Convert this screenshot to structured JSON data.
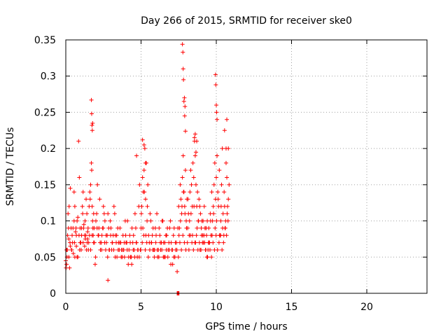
{
  "chart_data": {
    "type": "scatter",
    "title": "Day 266 of 2015, SRMTID for receiver ske0",
    "xlabel": "GPS time / hours",
    "ylabel": "SRMTID / TECUs",
    "xlim": [
      0,
      24
    ],
    "ylim": [
      0,
      0.35
    ],
    "x_ticks": [
      0,
      5,
      10,
      15,
      20
    ],
    "x_tick_labels": [
      "0",
      "5",
      "10",
      "15",
      "20"
    ],
    "y_ticks": [
      0,
      0.05,
      0.1,
      0.15,
      0.2,
      0.25,
      0.3,
      0.35
    ],
    "y_tick_labels": [
      "0",
      "0.05",
      "0.1",
      "0.15",
      "0.2",
      "0.25",
      "0.3",
      "0.35"
    ],
    "grid": true,
    "marker": "+",
    "color": "#ff0000",
    "series": [
      {
        "name": "SRMTID ske0",
        "x": [
          0.0,
          0.05,
          0.1,
          0.15,
          0.2,
          0.25,
          0.3,
          0.35,
          0.4,
          0.45,
          0.5,
          0.55,
          0.6,
          0.65,
          0.7,
          0.75,
          0.8,
          0.85,
          0.9,
          0.95,
          1.0,
          1.05,
          1.1,
          1.15,
          1.2,
          1.25,
          1.3,
          1.35,
          1.4,
          1.45,
          1.5,
          1.55,
          1.6,
          1.65,
          1.7,
          1.75,
          1.8,
          1.85,
          1.9,
          1.95,
          2.0,
          2.1,
          2.2,
          2.3,
          2.4,
          2.5,
          2.6,
          2.7,
          2.8,
          2.9,
          3.0,
          3.1,
          3.2,
          3.3,
          3.4,
          3.5,
          3.6,
          3.7,
          3.8,
          3.9,
          4.0,
          4.1,
          4.2,
          4.3,
          4.4,
          4.5,
          4.6,
          4.7,
          4.8,
          4.9,
          5.0,
          5.05,
          5.1,
          5.15,
          5.2,
          5.25,
          5.3,
          5.35,
          5.4,
          5.45,
          5.5,
          5.6,
          5.7,
          5.8,
          5.9,
          6.0,
          6.1,
          6.2,
          6.3,
          6.4,
          6.5,
          6.6,
          6.7,
          6.8,
          6.9,
          7.0,
          7.1,
          7.2,
          7.3,
          7.4,
          7.5,
          7.55,
          7.6,
          7.65,
          7.7,
          7.75,
          7.8,
          7.85,
          7.9,
          7.95,
          8.0,
          8.05,
          8.1,
          8.15,
          8.2,
          8.25,
          8.3,
          8.35,
          8.4,
          8.45,
          8.5,
          8.55,
          8.6,
          8.65,
          8.7,
          8.75,
          8.8,
          8.85,
          8.9,
          8.95,
          9.0,
          9.05,
          9.1,
          9.15,
          9.2,
          9.25,
          9.3,
          9.35,
          9.4,
          9.45,
          9.5,
          9.55,
          9.6,
          9.65,
          9.7,
          9.75,
          9.8,
          9.85,
          9.9,
          9.95,
          10.0,
          10.05,
          10.1,
          10.15,
          10.2,
          10.25,
          10.3,
          10.35,
          10.4,
          10.45,
          10.5,
          10.55,
          10.6,
          10.65,
          10.7,
          10.75,
          10.8,
          10.85,
          0.02,
          0.08,
          0.18,
          0.22,
          0.3,
          0.42,
          0.55,
          0.6,
          0.68,
          0.75,
          0.88,
          0.95,
          1.02,
          1.12,
          1.18,
          1.28,
          1.33,
          1.42,
          1.48,
          1.58,
          1.62,
          1.72,
          1.78,
          1.82,
          1.88,
          2.05,
          2.15,
          2.25,
          2.35,
          2.45,
          2.55,
          2.65,
          2.75,
          2.85,
          2.95,
          3.05,
          3.15,
          3.25,
          3.35,
          3.45,
          3.55,
          3.65,
          3.75,
          3.85,
          3.95,
          4.05,
          4.15,
          4.25,
          4.35,
          4.45,
          4.55,
          4.65,
          4.75,
          4.85,
          4.95,
          5.02,
          5.12,
          5.22,
          5.32,
          5.42,
          5.55,
          5.65,
          5.75,
          5.85,
          5.95,
          6.05,
          6.15,
          6.25,
          6.35,
          6.45,
          6.55,
          6.65,
          6.75,
          6.85,
          6.95,
          7.05,
          7.15,
          7.25,
          7.35,
          7.45,
          7.52,
          7.62,
          7.72,
          7.82,
          7.92,
          8.02,
          8.12,
          8.22,
          8.32,
          8.42,
          8.52,
          8.62,
          8.72,
          8.82,
          8.92,
          9.02,
          9.12,
          9.22,
          9.32,
          9.42,
          9.52,
          9.62,
          9.72,
          9.82,
          9.92,
          10.02,
          10.12,
          10.22,
          10.32,
          10.42,
          10.52,
          10.62,
          10.72,
          10.8,
          0.05,
          0.12,
          0.2,
          0.28,
          0.38,
          0.48,
          0.58,
          0.7,
          0.8,
          0.92,
          1.05,
          1.15,
          1.25,
          1.38,
          1.45,
          1.52,
          1.65,
          1.75,
          1.85,
          1.98,
          2.08,
          2.18,
          2.28,
          2.38,
          2.48,
          2.58,
          2.68,
          2.78,
          2.88,
          2.98,
          3.08,
          3.18,
          3.28,
          3.38,
          3.48,
          3.58,
          3.68,
          3.78,
          3.88,
          3.98,
          4.08,
          4.18,
          4.28,
          4.38,
          4.48,
          4.58,
          4.68,
          4.78,
          4.88,
          4.98,
          5.08,
          5.18,
          5.28,
          5.38,
          5.48,
          5.58,
          5.68,
          5.78,
          5.88,
          5.98,
          6.08,
          6.18,
          6.28,
          6.38,
          6.48,
          6.58,
          6.68,
          6.78,
          6.88,
          6.98,
          7.08,
          7.18,
          7.28,
          7.38,
          7.48,
          7.58,
          7.68,
          7.78,
          7.88,
          7.98,
          8.08,
          8.18,
          8.28,
          8.38,
          8.48,
          8.58,
          8.68,
          8.78,
          8.88,
          8.98,
          9.08,
          9.18,
          9.28,
          9.38,
          9.48,
          9.58,
          9.68,
          9.78,
          9.88,
          9.98,
          10.08,
          10.18,
          10.28,
          10.38,
          10.48,
          10.58,
          10.68,
          10.78,
          1.7,
          1.72,
          1.74,
          1.76,
          1.78,
          4.7,
          5.1,
          5.2,
          5.3,
          7.75,
          7.78,
          7.8,
          7.82,
          7.85,
          7.88,
          7.9,
          7.92,
          7.95,
          8.55,
          8.6,
          8.65,
          8.7,
          9.95,
          9.97,
          10.0,
          10.02,
          10.05,
          10.55,
          10.65,
          10.7,
          2.8,
          7.4,
          7.42,
          7.44,
          7.46,
          7.48,
          7.5,
          7.52
        ],
        "y": [
          0.045,
          0.04,
          0.06,
          0.11,
          0.075,
          0.035,
          0.145,
          0.09,
          0.06,
          0.07,
          0.055,
          0.1,
          0.12,
          0.085,
          0.065,
          0.05,
          0.105,
          0.21,
          0.16,
          0.09,
          0.07,
          0.08,
          0.12,
          0.14,
          0.095,
          0.065,
          0.075,
          0.13,
          0.11,
          0.085,
          0.06,
          0.12,
          0.14,
          0.15,
          0.18,
          0.12,
          0.09,
          0.11,
          0.07,
          0.04,
          0.1,
          0.15,
          0.09,
          0.06,
          0.08,
          0.12,
          0.1,
          0.07,
          0.11,
          0.06,
          0.09,
          0.07,
          0.12,
          0.08,
          0.05,
          0.07,
          0.09,
          0.06,
          0.08,
          0.05,
          0.07,
          0.1,
          0.06,
          0.05,
          0.09,
          0.08,
          0.11,
          0.07,
          0.06,
          0.15,
          0.09,
          0.12,
          0.16,
          0.14,
          0.17,
          0.2,
          0.13,
          0.18,
          0.1,
          0.15,
          0.08,
          0.11,
          0.07,
          0.09,
          0.06,
          0.08,
          0.05,
          0.09,
          0.06,
          0.1,
          0.07,
          0.05,
          0.08,
          0.06,
          0.09,
          0.07,
          0.04,
          0.09,
          0.06,
          0.03,
          0.12,
          0.09,
          0.15,
          0.13,
          0.11,
          0.16,
          0.19,
          0.14,
          0.12,
          0.17,
          0.1,
          0.13,
          0.09,
          0.11,
          0.08,
          0.14,
          0.17,
          0.15,
          0.12,
          0.18,
          0.16,
          0.21,
          0.19,
          0.15,
          0.12,
          0.14,
          0.1,
          0.13,
          0.12,
          0.11,
          0.09,
          0.1,
          0.08,
          0.07,
          0.12,
          0.09,
          0.06,
          0.08,
          0.1,
          0.06,
          0.09,
          0.07,
          0.11,
          0.08,
          0.14,
          0.1,
          0.12,
          0.15,
          0.18,
          0.13,
          0.16,
          0.19,
          0.14,
          0.12,
          0.17,
          0.08,
          0.1,
          0.15,
          0.2,
          0.11,
          0.08,
          0.12,
          0.09,
          0.18,
          0.16,
          0.12,
          0.2,
          0.15,
          0.035,
          0.05,
          0.09,
          0.12,
          0.065,
          0.08,
          0.14,
          0.05,
          0.09,
          0.1,
          0.08,
          0.07,
          0.06,
          0.11,
          0.09,
          0.1,
          0.08,
          0.07,
          0.09,
          0.08,
          0.13,
          0.17,
          0.1,
          0.08,
          0.09,
          0.11,
          0.08,
          0.13,
          0.07,
          0.09,
          0.11,
          0.06,
          0.08,
          0.09,
          0.1,
          0.06,
          0.08,
          0.11,
          0.07,
          0.09,
          0.06,
          0.07,
          0.05,
          0.06,
          0.1,
          0.07,
          0.04,
          0.08,
          0.05,
          0.07,
          0.06,
          0.09,
          0.05,
          0.12,
          0.06,
          0.11,
          0.09,
          0.14,
          0.08,
          0.12,
          0.07,
          0.1,
          0.08,
          0.06,
          0.09,
          0.11,
          0.06,
          0.08,
          0.07,
          0.1,
          0.05,
          0.08,
          0.09,
          0.07,
          0.1,
          0.06,
          0.08,
          0.05,
          0.07,
          0.09,
          0.08,
          0.1,
          0.12,
          0.14,
          0.11,
          0.09,
          0.13,
          0.1,
          0.11,
          0.08,
          0.12,
          0.07,
          0.09,
          0.1,
          0.06,
          0.08,
          0.1,
          0.07,
          0.09,
          0.05,
          0.07,
          0.1,
          0.08,
          0.11,
          0.09,
          0.1,
          0.13,
          0.08,
          0.12,
          0.09,
          0.14,
          0.1,
          0.11,
          0.13,
          0.06,
          0.08,
          0.05,
          0.07,
          0.06,
          0.09,
          0.07,
          0.08,
          0.05,
          0.06,
          0.09,
          0.07,
          0.08,
          0.06,
          0.075,
          0.07,
          0.06,
          0.08,
          0.07,
          0.05,
          0.09,
          0.08,
          0.07,
          0.06,
          0.09,
          0.07,
          0.08,
          0.05,
          0.06,
          0.08,
          0.07,
          0.06,
          0.05,
          0.08,
          0.06,
          0.07,
          0.05,
          0.06,
          0.07,
          0.08,
          0.06,
          0.05,
          0.07,
          0.04,
          0.06,
          0.05,
          0.07,
          0.06,
          0.05,
          0.06,
          0.07,
          0.08,
          0.06,
          0.07,
          0.05,
          0.06,
          0.07,
          0.06,
          0.05,
          0.07,
          0.06,
          0.05,
          0.07,
          0.06,
          0.05,
          0.07,
          0.06,
          0.05,
          0.06,
          0.04,
          0.06,
          0.05,
          0.07,
          0.06,
          0.05,
          0.07,
          0.06,
          0.08,
          0.07,
          0.06,
          0.07,
          0.06,
          0.08,
          0.07,
          0.06,
          0.07,
          0.08,
          0.06,
          0.07,
          0.06,
          0.07,
          0.08,
          0.06,
          0.05,
          0.07,
          0.06,
          0.05,
          0.07,
          0.06,
          0.08,
          0.06,
          0.07,
          0.08,
          0.06,
          0.07,
          0.09,
          0.08,
          0.1,
          0.267,
          0.248,
          0.232,
          0.225,
          0.235,
          0.19,
          0.212,
          0.205,
          0.18,
          0.344,
          0.333,
          0.31,
          0.295,
          0.265,
          0.27,
          0.245,
          0.258,
          0.224,
          0.215,
          0.22,
          0.195,
          0.21,
          0.302,
          0.288,
          0.26,
          0.25,
          0.24,
          0.225,
          0.2,
          0.24,
          0.018,
          0.0,
          0.0,
          0.0,
          0.0,
          0.0,
          0.0,
          0.0
        ]
      }
    ]
  }
}
